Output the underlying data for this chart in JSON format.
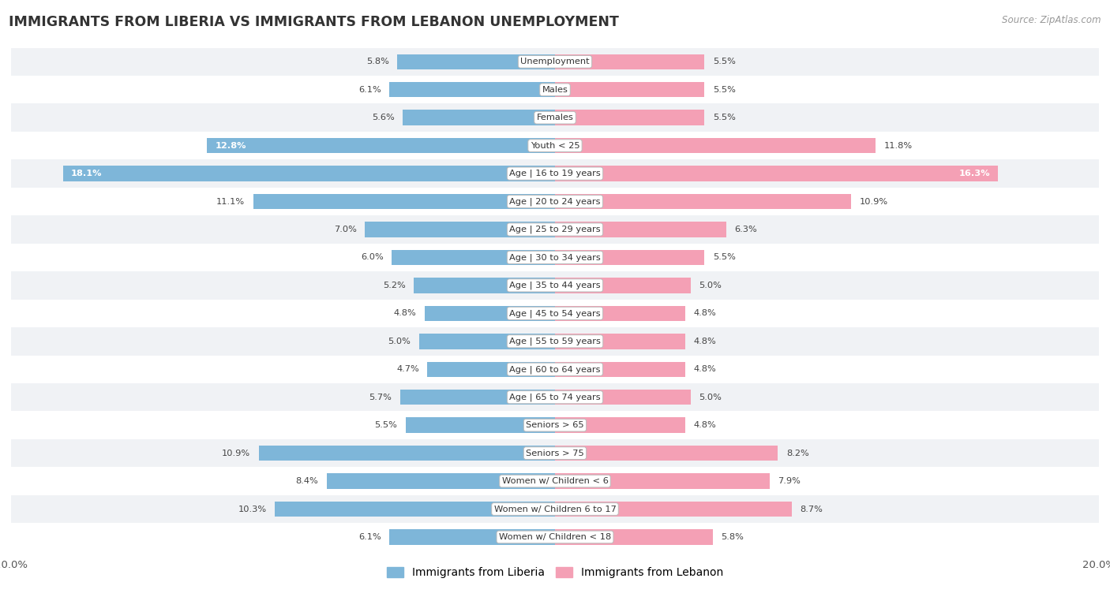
{
  "title": "IMMIGRANTS FROM LIBERIA VS IMMIGRANTS FROM LEBANON UNEMPLOYMENT",
  "source": "Source: ZipAtlas.com",
  "categories": [
    "Unemployment",
    "Males",
    "Females",
    "Youth < 25",
    "Age | 16 to 19 years",
    "Age | 20 to 24 years",
    "Age | 25 to 29 years",
    "Age | 30 to 34 years",
    "Age | 35 to 44 years",
    "Age | 45 to 54 years",
    "Age | 55 to 59 years",
    "Age | 60 to 64 years",
    "Age | 65 to 74 years",
    "Seniors > 65",
    "Seniors > 75",
    "Women w/ Children < 6",
    "Women w/ Children 6 to 17",
    "Women w/ Children < 18"
  ],
  "liberia_values": [
    5.8,
    6.1,
    5.6,
    12.8,
    18.1,
    11.1,
    7.0,
    6.0,
    5.2,
    4.8,
    5.0,
    4.7,
    5.7,
    5.5,
    10.9,
    8.4,
    10.3,
    6.1
  ],
  "lebanon_values": [
    5.5,
    5.5,
    5.5,
    11.8,
    16.3,
    10.9,
    6.3,
    5.5,
    5.0,
    4.8,
    4.8,
    4.8,
    5.0,
    4.8,
    8.2,
    7.9,
    8.7,
    5.8
  ],
  "liberia_color": "#7eb6d9",
  "lebanon_color": "#f4a0b5",
  "label_liberia": "Immigrants from Liberia",
  "label_lebanon": "Immigrants from Lebanon",
  "x_max": 20.0,
  "bg_color": "#ffffff"
}
